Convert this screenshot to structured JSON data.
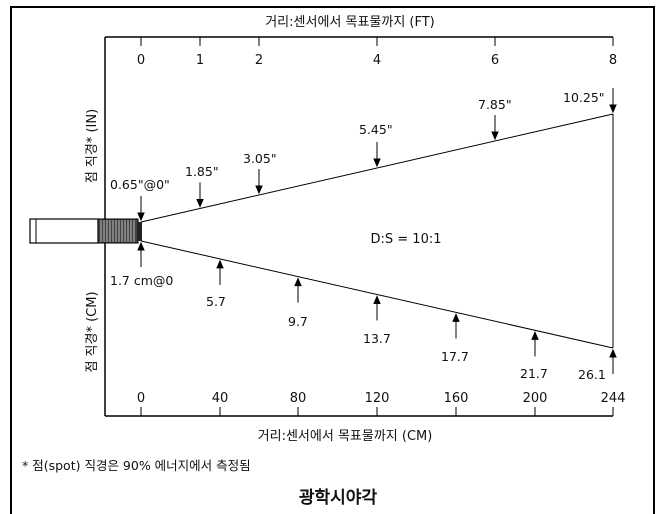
{
  "diagram": {
    "title": "광학시야각",
    "top_axis_label": "거리:센서에서 목표물까지 (FT)",
    "bottom_axis_label": "거리:센서에서 목표물까지 (CM)",
    "left_label_top": "점 직경* (IN)",
    "left_label_bottom": "점 직경* (CM)",
    "ratio": "D:S = 10:1",
    "footnote": "* 점(spot) 직경은 90% 에너지에서 측정됨",
    "ft_ticks": [
      "0",
      "1",
      "2",
      "4",
      "6",
      "8"
    ],
    "cm_ticks": [
      "0",
      "40",
      "80",
      "120",
      "160",
      "200",
      "244"
    ],
    "spot_in": [
      "0.65\"@0\"",
      "1.85\"",
      "3.05\"",
      "5.45\"",
      "7.85\"",
      "10.25\""
    ],
    "spot_cm": [
      "1.7 cm@0",
      "5.7",
      "9.7",
      "13.7",
      "17.7",
      "21.7",
      "26.1"
    ]
  }
}
